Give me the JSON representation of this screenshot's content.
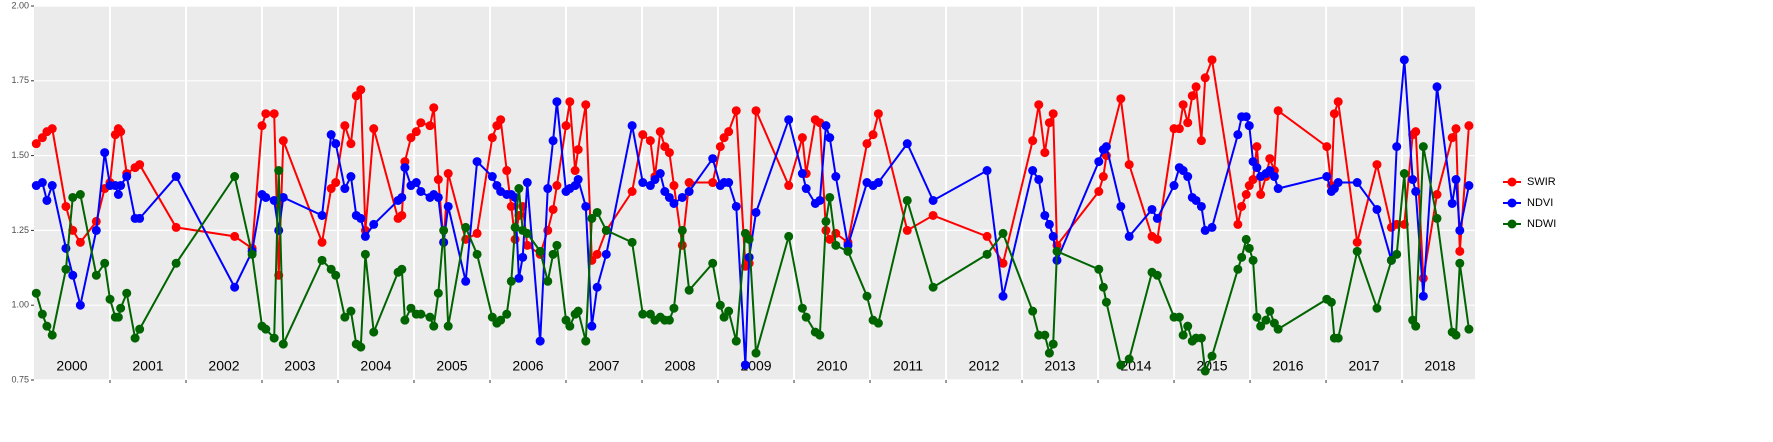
{
  "chart_data": {
    "type": "line",
    "x": [
      2000.03,
      2000.11,
      2000.17,
      2000.24,
      2000.42,
      2000.51,
      2000.61,
      2000.82,
      2000.93,
      2001.0,
      2001.07,
      2001.11,
      2001.14,
      2001.22,
      2001.33,
      2001.39,
      2001.87,
      2002.64,
      2002.87,
      2003.0,
      2003.05,
      2003.16,
      2003.22,
      2003.28,
      2003.79,
      2003.91,
      2003.97,
      2004.09,
      2004.17,
      2004.24,
      2004.3,
      2004.36,
      2004.47,
      2004.79,
      2004.84,
      2004.88,
      2004.96,
      2005.03,
      2005.09,
      2005.21,
      2005.26,
      2005.32,
      2005.39,
      2005.45,
      2005.68,
      2005.83,
      2006.03,
      2006.09,
      2006.14,
      2006.22,
      2006.28,
      2006.33,
      2006.38,
      2006.43,
      2006.49,
      2006.66,
      2006.76,
      2006.83,
      2006.88,
      2007.0,
      2007.05,
      2007.12,
      2007.16,
      2007.26,
      2007.34,
      2007.41,
      2007.53,
      2007.87,
      2008.01,
      2008.11,
      2008.17,
      2008.24,
      2008.3,
      2008.36,
      2008.42,
      2008.53,
      2008.62,
      2008.93,
      2009.03,
      2009.08,
      2009.14,
      2009.24,
      2009.36,
      2009.41,
      2009.5,
      2009.93,
      2010.11,
      2010.16,
      2010.28,
      2010.34,
      2010.42,
      2010.47,
      2010.55,
      2010.71,
      2010.96,
      2011.04,
      2011.11,
      2011.49,
      2011.83,
      2012.54,
      2012.75,
      2013.14,
      2013.22,
      2013.3,
      2013.36,
      2013.41,
      2013.46,
      2014.01,
      2014.07,
      2014.11,
      2014.3,
      2014.41,
      2014.71,
      2014.78,
      2015.0,
      2015.07,
      2015.12,
      2015.18,
      2015.24,
      2015.29,
      2015.36,
      2015.41,
      2015.5,
      2015.84,
      2015.89,
      2015.95,
      2015.99,
      2016.04,
      2016.09,
      2016.14,
      2016.21,
      2016.26,
      2016.32,
      2016.37,
      2017.01,
      2017.07,
      2017.11,
      2017.16,
      2017.41,
      2017.67,
      2017.86,
      2017.93,
      2018.03,
      2018.14,
      2018.18,
      2018.28,
      2018.46,
      2018.66,
      2018.71,
      2018.76,
      2018.88
    ],
    "series": [
      {
        "name": "SWIR",
        "color": "#ff0000",
        "values": [
          1.54,
          1.56,
          1.58,
          1.59,
          1.33,
          1.25,
          1.21,
          1.28,
          1.39,
          1.41,
          1.57,
          1.59,
          1.58,
          1.44,
          1.46,
          1.47,
          1.26,
          1.23,
          1.19,
          1.6,
          1.64,
          1.64,
          1.1,
          1.55,
          1.21,
          1.39,
          1.41,
          1.6,
          1.54,
          1.7,
          1.72,
          1.25,
          1.59,
          1.29,
          1.3,
          1.48,
          1.56,
          1.58,
          1.61,
          1.6,
          1.66,
          1.42,
          1.21,
          1.44,
          1.22,
          1.24,
          1.56,
          1.6,
          1.62,
          1.45,
          1.33,
          1.22,
          1.3,
          1.33,
          1.2,
          1.17,
          1.25,
          1.32,
          1.4,
          1.6,
          1.68,
          1.45,
          1.52,
          1.67,
          1.15,
          1.17,
          1.25,
          1.38,
          1.57,
          1.55,
          1.43,
          1.58,
          1.53,
          1.51,
          1.4,
          1.2,
          1.41,
          1.41,
          1.53,
          1.56,
          1.58,
          1.65,
          1.13,
          1.14,
          1.65,
          1.4,
          1.56,
          1.44,
          1.62,
          1.61,
          1.25,
          1.22,
          1.24,
          1.21,
          1.54,
          1.57,
          1.64,
          1.25,
          1.3,
          1.23,
          1.14,
          1.55,
          1.67,
          1.51,
          1.61,
          1.64,
          1.2,
          1.38,
          1.43,
          1.5,
          1.69,
          1.47,
          1.23,
          1.22,
          1.59,
          1.59,
          1.67,
          1.61,
          1.7,
          1.73,
          1.55,
          1.76,
          1.82,
          1.27,
          1.33,
          1.37,
          1.4,
          1.42,
          1.53,
          1.37,
          1.43,
          1.49,
          1.45,
          1.65,
          1.53,
          1.4,
          1.64,
          1.68,
          1.21,
          1.47,
          1.26,
          1.27,
          1.27,
          1.57,
          1.58,
          1.09,
          1.37,
          1.56,
          1.59,
          1.18,
          1.6
        ]
      },
      {
        "name": "NDVI",
        "color": "#0000ff",
        "values": [
          1.4,
          1.41,
          1.35,
          1.4,
          1.19,
          1.1,
          1.0,
          1.25,
          1.51,
          1.4,
          1.4,
          1.37,
          1.4,
          1.43,
          1.29,
          1.29,
          1.43,
          1.06,
          1.18,
          1.37,
          1.36,
          1.35,
          1.25,
          1.36,
          1.3,
          1.57,
          1.54,
          1.39,
          1.43,
          1.3,
          1.29,
          1.23,
          1.27,
          1.35,
          1.36,
          1.46,
          1.4,
          1.41,
          1.38,
          1.36,
          1.37,
          1.36,
          1.21,
          1.33,
          1.08,
          1.48,
          1.43,
          1.4,
          1.38,
          1.37,
          1.37,
          1.36,
          1.09,
          1.16,
          1.41,
          0.88,
          1.39,
          1.55,
          1.68,
          1.38,
          1.39,
          1.4,
          1.42,
          1.33,
          0.93,
          1.06,
          1.17,
          1.6,
          1.41,
          1.4,
          1.42,
          1.44,
          1.38,
          1.36,
          1.34,
          1.36,
          1.38,
          1.49,
          1.4,
          1.41,
          1.41,
          1.33,
          0.8,
          1.16,
          1.31,
          1.62,
          1.44,
          1.39,
          1.34,
          1.35,
          1.6,
          1.56,
          1.43,
          1.2,
          1.41,
          1.4,
          1.41,
          1.54,
          1.35,
          1.45,
          1.03,
          1.45,
          1.42,
          1.3,
          1.27,
          1.23,
          1.15,
          1.48,
          1.52,
          1.53,
          1.33,
          1.23,
          1.32,
          1.29,
          1.4,
          1.46,
          1.45,
          1.43,
          1.36,
          1.35,
          1.33,
          1.25,
          1.26,
          1.57,
          1.63,
          1.63,
          1.6,
          1.48,
          1.46,
          1.43,
          1.44,
          1.45,
          1.43,
          1.39,
          1.43,
          1.38,
          1.39,
          1.41,
          1.41,
          1.32,
          1.15,
          1.53,
          1.82,
          1.42,
          1.38,
          1.03,
          1.73,
          1.34,
          1.42,
          1.25,
          1.4
        ]
      },
      {
        "name": "NDWI",
        "color": "#006400",
        "values": [
          1.04,
          0.97,
          0.93,
          0.9,
          1.12,
          1.36,
          1.37,
          1.1,
          1.14,
          1.02,
          0.96,
          0.96,
          0.99,
          1.04,
          0.89,
          0.92,
          1.14,
          1.43,
          1.17,
          0.93,
          0.92,
          0.89,
          1.45,
          0.87,
          1.15,
          1.12,
          1.1,
          0.96,
          0.98,
          0.87,
          0.86,
          1.17,
          0.91,
          1.11,
          1.12,
          0.95,
          0.99,
          0.97,
          0.97,
          0.96,
          0.93,
          1.04,
          1.25,
          0.93,
          1.26,
          1.17,
          0.96,
          0.94,
          0.95,
          0.97,
          1.08,
          1.26,
          1.39,
          1.25,
          1.24,
          1.18,
          1.08,
          1.17,
          1.2,
          0.95,
          0.93,
          0.97,
          0.98,
          0.88,
          1.29,
          1.31,
          1.25,
          1.21,
          0.97,
          0.97,
          0.95,
          0.96,
          0.95,
          0.95,
          0.99,
          1.25,
          1.05,
          1.14,
          1.0,
          0.96,
          0.98,
          0.88,
          1.24,
          1.22,
          0.84,
          1.23,
          0.99,
          0.96,
          0.91,
          0.9,
          1.28,
          1.36,
          1.2,
          1.18,
          1.03,
          0.95,
          0.94,
          1.35,
          1.06,
          1.17,
          1.24,
          0.98,
          0.9,
          0.9,
          0.84,
          0.87,
          1.18,
          1.12,
          1.06,
          1.01,
          0.8,
          0.82,
          1.11,
          1.1,
          0.96,
          0.96,
          0.9,
          0.93,
          0.88,
          0.89,
          0.89,
          0.78,
          0.83,
          1.12,
          1.16,
          1.22,
          1.19,
          1.15,
          0.96,
          0.93,
          0.95,
          0.98,
          0.94,
          0.92,
          1.02,
          1.01,
          0.89,
          0.89,
          1.18,
          0.99,
          1.15,
          1.17,
          1.44,
          0.95,
          0.93,
          1.53,
          1.29,
          0.91,
          0.9,
          1.14,
          0.92
        ]
      }
    ],
    "xlim": [
      2000,
      2018.96
    ],
    "xticks": [
      2001,
      2002,
      2003,
      2004,
      2005,
      2006,
      2007,
      2008,
      2009,
      2010,
      2011,
      2012,
      2013,
      2014,
      2015,
      2016,
      2017,
      2018
    ],
    "year_labels": [
      {
        "value": 2000.5,
        "label": "2000"
      },
      {
        "value": 2001.5,
        "label": "2001"
      },
      {
        "value": 2002.5,
        "label": "2002"
      },
      {
        "value": 2003.5,
        "label": "2003"
      },
      {
        "value": 2004.5,
        "label": "2004"
      },
      {
        "value": 2005.5,
        "label": "2005"
      },
      {
        "value": 2006.5,
        "label": "2006"
      },
      {
        "value": 2007.5,
        "label": "2007"
      },
      {
        "value": 2008.5,
        "label": "2008"
      },
      {
        "value": 2009.5,
        "label": "2009"
      },
      {
        "value": 2010.5,
        "label": "2010"
      },
      {
        "value": 2011.5,
        "label": "2011"
      },
      {
        "value": 2012.5,
        "label": "2012"
      },
      {
        "value": 2013.5,
        "label": "2013"
      },
      {
        "value": 2014.5,
        "label": "2014"
      },
      {
        "value": 2015.5,
        "label": "2015"
      },
      {
        "value": 2016.5,
        "label": "2016"
      },
      {
        "value": 2017.5,
        "label": "2017"
      },
      {
        "value": 2018.5,
        "label": "2018"
      }
    ],
    "ylim": [
      0.75,
      2.0
    ],
    "yticks": [
      {
        "value": 0.75,
        "label": "0.75"
      },
      {
        "value": 1.0,
        "label": "1.00"
      },
      {
        "value": 1.25,
        "label": "1.25"
      },
      {
        "value": 1.5,
        "label": "1.50"
      },
      {
        "value": 1.75,
        "label": "1.75"
      },
      {
        "value": 2.0,
        "label": "2.00"
      }
    ],
    "grid": true,
    "legend": "right"
  }
}
